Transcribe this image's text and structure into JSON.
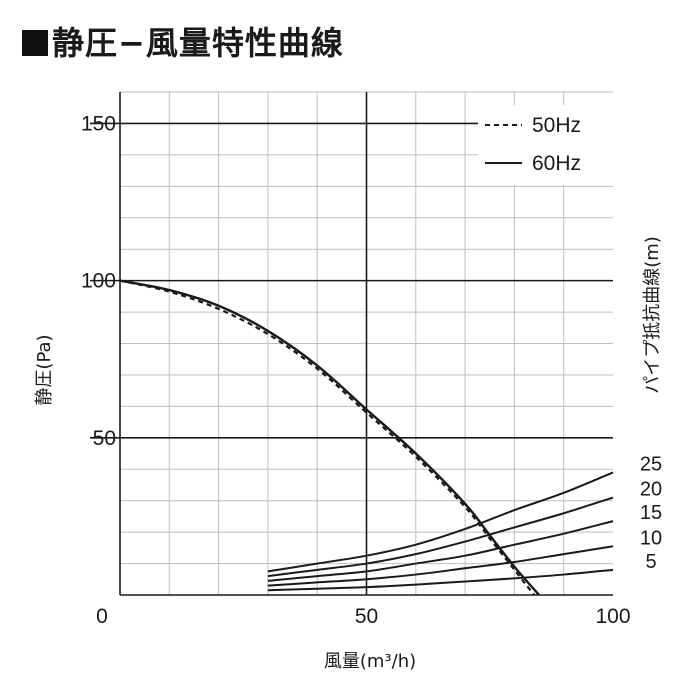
{
  "title": "静圧−風量特性曲線",
  "chart_data": {
    "type": "line",
    "xlabel": "風量(m³/h)",
    "ylabel": "静圧(Pa)",
    "right_label": "パイプ抵抗曲線(m)",
    "xlim": [
      0,
      100
    ],
    "ylim": [
      0,
      160
    ],
    "x_ticks": [
      "0",
      "50",
      "100"
    ],
    "x_tick_values": [
      0,
      50,
      100
    ],
    "y_ticks": [
      "150",
      "100",
      "50"
    ],
    "y_tick_values": [
      150,
      100,
      50
    ],
    "grid": true,
    "legend_position": "top-right",
    "series": [
      {
        "name": "50Hz",
        "style": "dashed",
        "x": [
          0,
          10,
          20,
          30,
          40,
          50,
          60,
          70,
          75,
          80,
          84
        ],
        "y": [
          100,
          96.5,
          91,
          83,
          72,
          58,
          44,
          28,
          18,
          8,
          0
        ]
      },
      {
        "name": "60Hz",
        "style": "solid",
        "x": [
          0,
          10,
          20,
          30,
          40,
          50,
          60,
          70,
          75,
          80,
          85
        ],
        "y": [
          100,
          97,
          92,
          84,
          73,
          59,
          45,
          29,
          19,
          9,
          0
        ]
      }
    ],
    "pipe_resistance_curves": [
      {
        "label": "25",
        "x": [
          30,
          40,
          50,
          60,
          70,
          80,
          90,
          100
        ],
        "y": [
          7.5,
          10,
          12.5,
          16,
          21,
          27,
          32.5,
          39
        ]
      },
      {
        "label": "20",
        "x": [
          30,
          40,
          50,
          60,
          70,
          80,
          90,
          100
        ],
        "y": [
          6,
          8,
          10,
          13,
          17,
          21.5,
          26,
          31
        ]
      },
      {
        "label": "15",
        "x": [
          30,
          40,
          50,
          60,
          70,
          80,
          90,
          100
        ],
        "y": [
          4.5,
          6,
          7.5,
          10,
          12.5,
          16,
          19.5,
          23.5
        ]
      },
      {
        "label": "10",
        "x": [
          30,
          40,
          50,
          60,
          70,
          80,
          90,
          100
        ],
        "y": [
          3,
          4,
          5,
          6.5,
          8.5,
          10.5,
          13,
          15.5
        ]
      },
      {
        "label": "5",
        "x": [
          30,
          40,
          50,
          60,
          70,
          80,
          90,
          100
        ],
        "y": [
          1.5,
          2,
          2.5,
          3.3,
          4.3,
          5.3,
          6.5,
          8
        ]
      }
    ],
    "colors": {
      "line": "#1a1a1a",
      "grid": "#bfbfbf",
      "major_grid": "#1a1a1a"
    }
  }
}
